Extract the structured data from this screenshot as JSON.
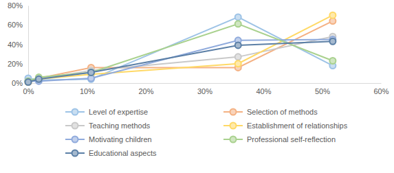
{
  "chart_data": {
    "type": "line",
    "x": [
      0,
      1.8,
      10.7,
      35.7,
      51.8
    ],
    "xlim": [
      0,
      60
    ],
    "xticks": [
      {
        "value": 0,
        "label": "0%"
      },
      {
        "value": 10,
        "label": "10%"
      },
      {
        "value": 20,
        "label": "20%"
      },
      {
        "value": 30,
        "label": "30%"
      },
      {
        "value": 40,
        "label": "40%"
      },
      {
        "value": 50,
        "label": "50%"
      },
      {
        "value": 60,
        "label": "60%"
      }
    ],
    "ylim": [
      0,
      80
    ],
    "yticks": [
      {
        "value": 0,
        "label": "0%"
      },
      {
        "value": 20,
        "label": "20%"
      },
      {
        "value": 40,
        "label": "40%"
      },
      {
        "value": 60,
        "label": "60%"
      },
      {
        "value": 80,
        "label": "80%"
      }
    ],
    "grid": false,
    "legend": "bottom",
    "marker": "circle",
    "series": [
      {
        "name": "Level of expertise",
        "color": "#9dc3e6",
        "values": [
          5,
          3,
          4,
          68,
          18
        ]
      },
      {
        "name": "Selection of methods",
        "color": "#f4b183",
        "values": [
          1,
          5,
          16,
          16,
          64
        ]
      },
      {
        "name": "Teaching methods",
        "color": "#c9c9c9",
        "values": [
          2,
          4,
          13,
          27,
          48
        ]
      },
      {
        "name": "Establishment of relationships",
        "color": "#ffd966",
        "values": [
          1,
          4,
          9,
          20,
          70
        ]
      },
      {
        "name": "Motivating children",
        "color": "#8faadc",
        "values": [
          2,
          2,
          5,
          44,
          45
        ]
      },
      {
        "name": "Professional self-reflection",
        "color": "#a9d18e",
        "values": [
          2,
          6,
          11,
          61,
          23
        ]
      },
      {
        "name": "Educational aspects",
        "color": "#5b7fa6",
        "values": [
          1,
          4,
          11,
          39,
          43
        ]
      }
    ]
  }
}
